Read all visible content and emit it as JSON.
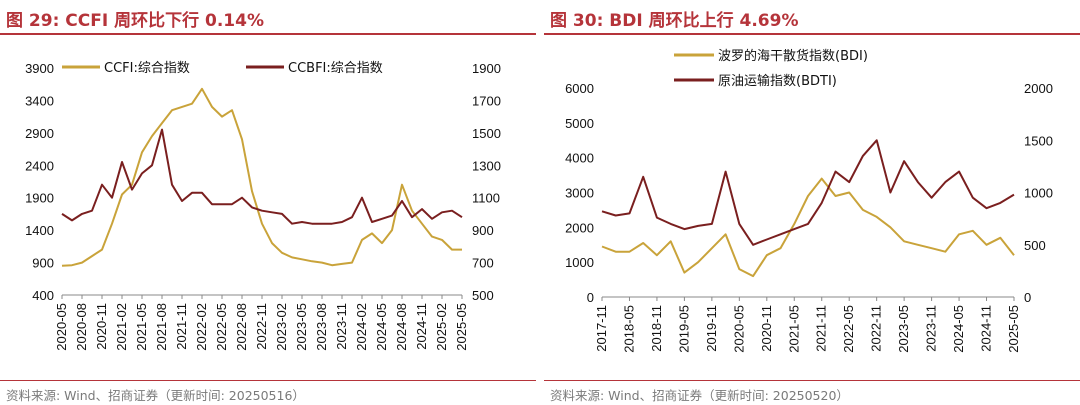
{
  "left": {
    "title": "图 29:  CCFI 周环比下行 0.14%",
    "source": "资料来源:  Wind、招商证券（更新时间:  20250516）",
    "chart_data": {
      "type": "line",
      "x_ticks": [
        "2020-05",
        "2020-08",
        "2020-11",
        "2021-02",
        "2021-05",
        "2021-08",
        "2021-11",
        "2022-02",
        "2022-05",
        "2022-08",
        "2022-11",
        "2023-02",
        "2023-05",
        "2023-08",
        "2023-11",
        "2024-02",
        "2024-05",
        "2024-08",
        "2024-11",
        "2025-02",
        "2025-05"
      ],
      "y_left": {
        "ticks": [
          "3900",
          "3400",
          "2900",
          "2400",
          "1900",
          "1400",
          "900",
          "400"
        ],
        "range": [
          400,
          3900
        ]
      },
      "y_right": {
        "ticks": [
          "1900",
          "1700",
          "1500",
          "1300",
          "1100",
          "900",
          "700",
          "500"
        ],
        "range": [
          500,
          1900
        ]
      },
      "series": [
        {
          "name": "CCFI:综合指数",
          "axis": "left",
          "color": "#c9a33a",
          "points": [
            [
              0,
              850
            ],
            [
              0.5,
              860
            ],
            [
              1,
              900
            ],
            [
              1.5,
              1000
            ],
            [
              2,
              1100
            ],
            [
              2.5,
              1500
            ],
            [
              3,
              1950
            ],
            [
              3.5,
              2100
            ],
            [
              4,
              2600
            ],
            [
              4.5,
              2850
            ],
            [
              5,
              3050
            ],
            [
              5.5,
              3250
            ],
            [
              6,
              3300
            ],
            [
              6.5,
              3350
            ],
            [
              7,
              3580
            ],
            [
              7.5,
              3300
            ],
            [
              8,
              3150
            ],
            [
              8.5,
              3250
            ],
            [
              9,
              2800
            ],
            [
              9.5,
              2000
            ],
            [
              10,
              1500
            ],
            [
              10.5,
              1200
            ],
            [
              11,
              1050
            ],
            [
              11.5,
              980
            ],
            [
              12,
              950
            ],
            [
              12.5,
              920
            ],
            [
              13,
              900
            ],
            [
              13.5,
              860
            ],
            [
              14,
              880
            ],
            [
              14.5,
              900
            ],
            [
              15,
              1250
            ],
            [
              15.5,
              1350
            ],
            [
              16,
              1200
            ],
            [
              16.5,
              1400
            ],
            [
              17,
              2100
            ],
            [
              17.5,
              1700
            ],
            [
              18,
              1500
            ],
            [
              18.5,
              1300
            ],
            [
              19,
              1250
            ],
            [
              19.5,
              1100
            ],
            [
              20,
              1100
            ]
          ]
        },
        {
          "name": "CCBFI:综合指数",
          "axis": "right",
          "color": "#7a1f1f",
          "points": [
            [
              0,
              1000
            ],
            [
              0.5,
              960
            ],
            [
              1,
              1000
            ],
            [
              1.5,
              1020
            ],
            [
              2,
              1180
            ],
            [
              2.5,
              1100
            ],
            [
              3,
              1320
            ],
            [
              3.5,
              1150
            ],
            [
              4,
              1250
            ],
            [
              4.5,
              1300
            ],
            [
              5,
              1520
            ],
            [
              5.5,
              1180
            ],
            [
              6,
              1080
            ],
            [
              6.5,
              1130
            ],
            [
              7,
              1130
            ],
            [
              7.5,
              1060
            ],
            [
              8,
              1060
            ],
            [
              8.5,
              1060
            ],
            [
              9,
              1100
            ],
            [
              9.5,
              1040
            ],
            [
              10,
              1020
            ],
            [
              10.5,
              1010
            ],
            [
              11,
              1000
            ],
            [
              11.5,
              940
            ],
            [
              12,
              950
            ],
            [
              12.5,
              940
            ],
            [
              13,
              940
            ],
            [
              13.5,
              940
            ],
            [
              14,
              950
            ],
            [
              14.5,
              980
            ],
            [
              15,
              1100
            ],
            [
              15.5,
              950
            ],
            [
              16,
              970
            ],
            [
              16.5,
              990
            ],
            [
              17,
              1080
            ],
            [
              17.5,
              980
            ],
            [
              18,
              1030
            ],
            [
              18.5,
              970
            ],
            [
              19,
              1010
            ],
            [
              19.5,
              1020
            ],
            [
              20,
              980
            ]
          ]
        }
      ]
    }
  },
  "right": {
    "title": "图 30:  BDI 周环比上行 4.69%",
    "source": "资料来源:  Wind、招商证券（更新时间:  20250520）",
    "chart_data": {
      "type": "line",
      "x_ticks": [
        "2017-11",
        "2018-05",
        "2018-11",
        "2019-05",
        "2019-11",
        "2020-05",
        "2020-11",
        "2021-05",
        "2021-11",
        "2022-05",
        "2022-11",
        "2023-05",
        "2023-11",
        "2024-05",
        "2024-11",
        "2025-05"
      ],
      "y_left": {
        "ticks": [
          "6000",
          "5000",
          "4000",
          "3000",
          "2000",
          "1000",
          "0"
        ],
        "range": [
          0,
          6000
        ]
      },
      "y_right": {
        "ticks": [
          "2000",
          "1500",
          "1000",
          "500",
          "0"
        ],
        "range": [
          0,
          2000
        ]
      },
      "series": [
        {
          "name": "波罗的海干散货指数(BDI)",
          "axis": "left",
          "color": "#c9a33a",
          "points": [
            [
              0,
              1450
            ],
            [
              0.5,
              1300
            ],
            [
              1,
              1300
            ],
            [
              1.5,
              1550
            ],
            [
              2,
              1200
            ],
            [
              2.5,
              1600
            ],
            [
              3,
              700
            ],
            [
              3.5,
              1000
            ],
            [
              4,
              1400
            ],
            [
              4.5,
              1800
            ],
            [
              5,
              800
            ],
            [
              5.5,
              600
            ],
            [
              6,
              1200
            ],
            [
              6.5,
              1400
            ],
            [
              7,
              2100
            ],
            [
              7.5,
              2900
            ],
            [
              8,
              3400
            ],
            [
              8.5,
              2900
            ],
            [
              9,
              3000
            ],
            [
              9.5,
              2500
            ],
            [
              10,
              2300
            ],
            [
              10.5,
              2000
            ],
            [
              11,
              1600
            ],
            [
              11.5,
              1500
            ],
            [
              12,
              1400
            ],
            [
              12.5,
              1300
            ],
            [
              13,
              1800
            ],
            [
              13.5,
              1900
            ],
            [
              14,
              1500
            ],
            [
              14.5,
              1700
            ],
            [
              15,
              1200
            ]
          ]
        },
        {
          "name": "原油运输指数(BDTI)",
          "axis": "right",
          "color": "#7a1f1f",
          "points": [
            [
              0,
              820
            ],
            [
              0.5,
              780
            ],
            [
              1,
              800
            ],
            [
              1.5,
              1150
            ],
            [
              2,
              760
            ],
            [
              2.5,
              700
            ],
            [
              3,
              650
            ],
            [
              3.5,
              680
            ],
            [
              4,
              700
            ],
            [
              4.5,
              1200
            ],
            [
              5,
              700
            ],
            [
              5.5,
              500
            ],
            [
              6,
              550
            ],
            [
              6.5,
              600
            ],
            [
              7,
              650
            ],
            [
              7.5,
              700
            ],
            [
              8,
              900
            ],
            [
              8.5,
              1200
            ],
            [
              9,
              1100
            ],
            [
              9.5,
              1350
            ],
            [
              10,
              1500
            ],
            [
              10.5,
              1000
            ],
            [
              11,
              1300
            ],
            [
              11.5,
              1100
            ],
            [
              12,
              950
            ],
            [
              12.5,
              1100
            ],
            [
              13,
              1200
            ],
            [
              13.5,
              950
            ],
            [
              14,
              850
            ],
            [
              14.5,
              900
            ],
            [
              15,
              980
            ]
          ]
        }
      ]
    }
  }
}
